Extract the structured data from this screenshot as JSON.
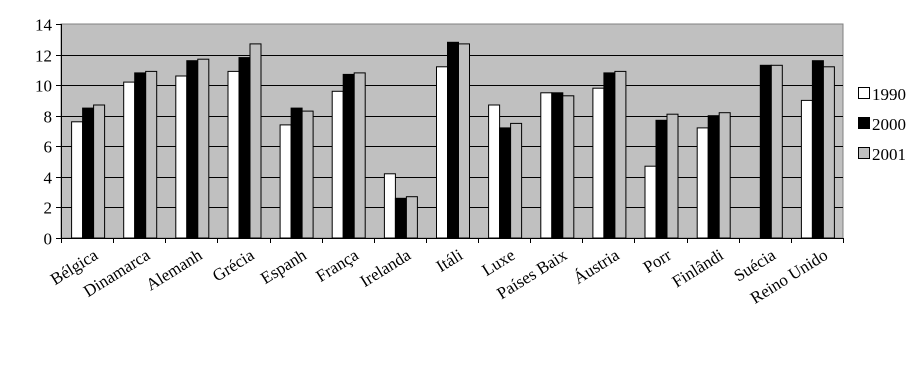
{
  "chart_data": {
    "type": "bar",
    "categories": [
      "Bélgica",
      "Dinamarca",
      "Alemanh",
      "Grécia",
      "Espanh",
      "França",
      "Irelanda",
      "Itáli",
      "Luxe",
      "Países Baix",
      "Áustria",
      "Porr",
      "Finlândi",
      "Suécia",
      "Reino Unido"
    ],
    "series": [
      {
        "name": "1990",
        "color": "#ffffff",
        "values": [
          7.6,
          10.2,
          10.6,
          10.9,
          7.4,
          9.6,
          4.2,
          11.2,
          8.7,
          9.5,
          9.8,
          4.7,
          7.2,
          null,
          9.0
        ]
      },
      {
        "name": "2000",
        "color": "#000000",
        "values": [
          8.5,
          10.8,
          11.6,
          11.8,
          8.5,
          10.7,
          2.6,
          12.8,
          7.2,
          9.5,
          10.8,
          7.7,
          8.0,
          11.3,
          11.6
        ]
      },
      {
        "name": "2001",
        "color": "#c0c0c0",
        "values": [
          8.7,
          10.9,
          11.7,
          12.7,
          8.3,
          10.8,
          2.7,
          12.7,
          7.5,
          9.3,
          10.9,
          8.1,
          8.2,
          11.3,
          11.2
        ]
      }
    ],
    "ylim": [
      0,
      14
    ],
    "yticks": [
      0,
      2,
      4,
      6,
      8,
      10,
      12,
      14
    ],
    "grid": true,
    "plot_background": "#c0c0c0",
    "legend_position": "right"
  }
}
